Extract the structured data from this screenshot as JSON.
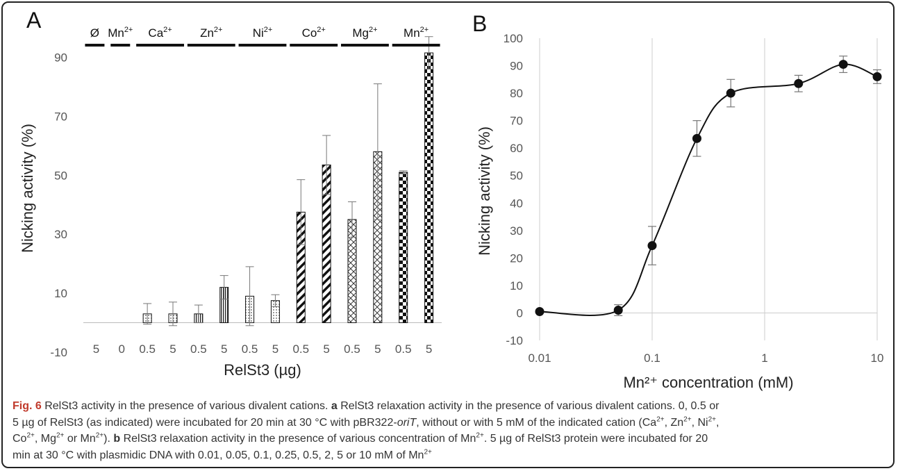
{
  "panel_a": {
    "letter": "A",
    "cation_groups": [
      {
        "label": "Ø",
        "bars": [
          0
        ]
      },
      {
        "label": "Mn",
        "sup": "2+",
        "bars": [
          1
        ]
      },
      {
        "label": "Ca",
        "sup": "2+",
        "bars": [
          2,
          3
        ]
      },
      {
        "label": "Zn",
        "sup": "2+",
        "bars": [
          4,
          5
        ]
      },
      {
        "label": "Ni",
        "sup": "2+",
        "bars": [
          6,
          7
        ]
      },
      {
        "label": "Co",
        "sup": "2+",
        "bars": [
          8,
          9
        ]
      },
      {
        "label": "Mg",
        "sup": "2+",
        "bars": [
          10,
          11
        ]
      },
      {
        "label": "Mn",
        "sup": "2+",
        "bars": [
          12,
          13
        ]
      }
    ]
  },
  "panel_b": {
    "letter": "B"
  },
  "chart_data": [
    {
      "type": "bar",
      "panel": "A",
      "xlabel": "RelSt3 (µg)",
      "ylabel": "Nicking activity (%)",
      "ylim": [
        -10,
        100
      ],
      "yticks": [
        -10,
        10,
        30,
        50,
        70,
        90
      ],
      "grid": false,
      "categories": [
        "5",
        "0",
        "0.5",
        "5",
        "0.5",
        "5",
        "0.5",
        "5",
        "0.5",
        "5",
        "0.5",
        "5",
        "0.5",
        "5"
      ],
      "values": [
        0,
        0,
        3,
        3,
        3,
        12,
        9,
        7.5,
        37.5,
        53.5,
        35,
        58,
        51,
        91.5
      ],
      "errors": [
        0,
        0,
        3.5,
        4,
        3,
        4,
        10,
        2,
        11,
        10,
        6,
        23,
        0.5,
        5.5
      ],
      "patterns": [
        "none",
        "none",
        "dots",
        "dots",
        "vlines",
        "vlines",
        "dots",
        "dots",
        "diag",
        "diag",
        "cross",
        "cross",
        "checker",
        "checker"
      ]
    },
    {
      "type": "line",
      "panel": "B",
      "xlabel": "Mn²⁺ concentration (mM)",
      "ylabel": "Nicking activity (%)",
      "xscale": "log",
      "xlim": [
        0.01,
        10
      ],
      "xticks": [
        "0.01",
        "0.1",
        "1",
        "10"
      ],
      "ylim": [
        -10,
        100
      ],
      "yticks": [
        -10,
        0,
        10,
        20,
        30,
        40,
        50,
        60,
        70,
        80,
        90,
        100
      ],
      "grid": "vertical",
      "series": [
        {
          "x": [
            0.01,
            0.05,
            0.1,
            0.25,
            0.5,
            2,
            5,
            10
          ],
          "y": [
            0.5,
            1,
            24.5,
            63.5,
            80,
            83.5,
            90.5,
            86
          ],
          "errors": [
            0.5,
            2,
            7,
            6.5,
            5,
            3,
            3,
            2.5
          ]
        }
      ]
    }
  ],
  "caption": {
    "figure_label": "Fig. 6",
    "title": " RelSt3 activity in the presence of various divalent cations. ",
    "a_label": "a",
    "line1_rest": " RelSt3 relaxation activity in the presence of various divalent cations. 0, 0.5 or",
    "line2": "5 µg of RelSt3 (as indicated) were incubated for 20 min at 30 °C with pBR322-",
    "line2_ital": "oriT",
    "line2_rest": ", without or with 5 mM of the indicated cation (Ca",
    "line2_t1": ", Zn",
    "line2_t2": ", Ni",
    "line2_t3": ",",
    "line3_a": "Co",
    "line3_b": ", Mg",
    "line3_c": " or Mn",
    "line3_d": "). ",
    "b_label": "b",
    "line3_rest": " RelSt3 relaxation activity in the presence of various concentration of Mn",
    "line3_e": ". 5 µg of RelSt3 protein were incubated for 20",
    "line4": "min at 30 °C with plasmidic DNA with 0.01, 0.05, 0.1, 0.25, 0.5, 2, 5 or 10 mM of Mn",
    "sup": "2+"
  }
}
